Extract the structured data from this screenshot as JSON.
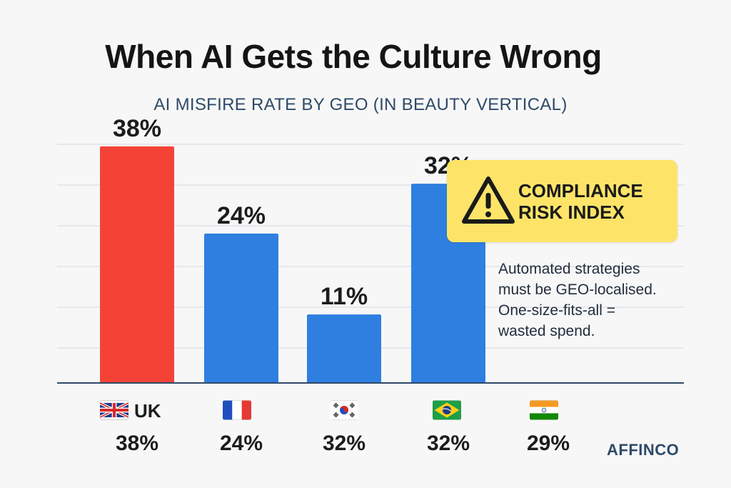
{
  "title": "When AI Gets the Culture Wrong",
  "subtitle": "AI MISFIRE RATE BY GEO (IN BEAUTY VERTICAL)",
  "chart_data": {
    "type": "bar",
    "categories": [
      "UK",
      "",
      "",
      ""
    ],
    "values": [
      38,
      24,
      11,
      32
    ],
    "bar_labels": [
      "38%",
      "24%",
      "11%",
      "32%"
    ],
    "bar_colors": [
      "#f44336",
      "#2e7fe0",
      "#2e7fe0",
      "#2e7fe0"
    ],
    "ylim": [
      0,
      42
    ],
    "grid": true,
    "xlabel": "",
    "ylabel": ""
  },
  "geo_row": [
    {
      "flag_icon": "uk-flag-icon",
      "label": "UK",
      "value": "38%"
    },
    {
      "flag_icon": "france-flag-icon",
      "label": "",
      "value": "24%"
    },
    {
      "flag_icon": "south-korea-flag-icon",
      "label": "",
      "value": "32%"
    },
    {
      "flag_icon": "brazil-flag-icon",
      "label": "",
      "value": "32%"
    },
    {
      "flag_icon": "india-flag-icon",
      "label": "",
      "value": "29%"
    }
  ],
  "callout": {
    "icon": "warning-icon",
    "line1": "COMPLIANCE",
    "line2": "RISK INDEX",
    "color": "#fde468"
  },
  "note": {
    "line1": "Automated strategies",
    "line2": "must be GEO-localised.",
    "line3": "One-size-fits-all =",
    "line4": "wasted spend."
  },
  "brand": "AFFINCO"
}
